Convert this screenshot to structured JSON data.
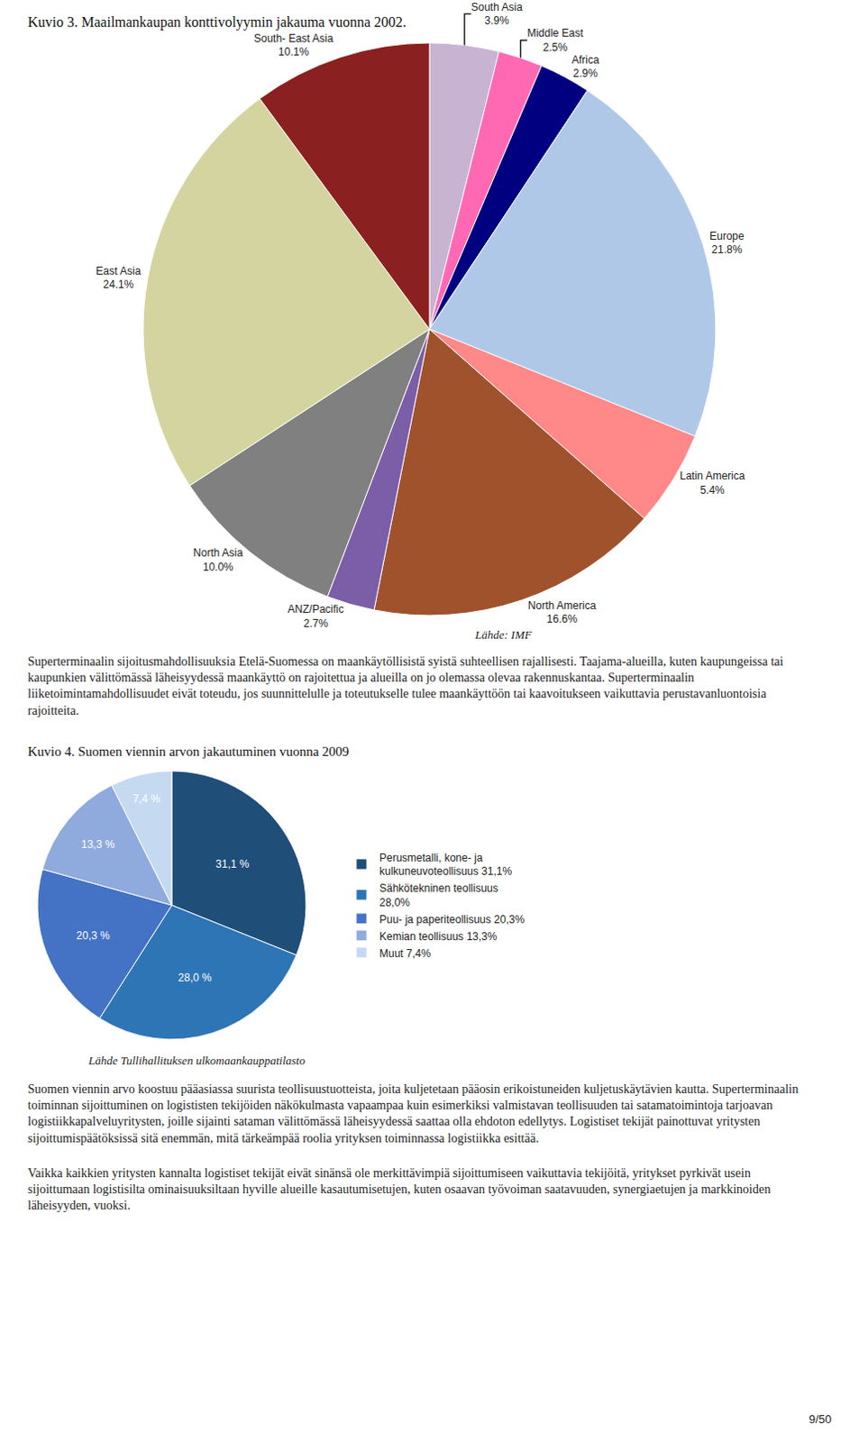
{
  "chart_data": [
    {
      "type": "pie",
      "title": "Kuvio 3. Maailmankaupan konttivolyymin jakauma vuonna 2002.",
      "categories": [
        "South Asia",
        "Middle East",
        "Africa",
        "Europe",
        "Latin America",
        "North America",
        "ANZ/Pacific",
        "North Asia",
        "East Asia",
        "South- East Asia"
      ],
      "values": [
        3.9,
        2.5,
        2.9,
        21.8,
        5.4,
        16.6,
        2.7,
        10.0,
        24.1,
        10.1
      ],
      "value_labels": [
        "3.9%",
        "2.5%",
        "2.9%",
        "21.8%",
        "5.4%",
        "16.6%",
        "2.7%",
        "10.0%",
        "24.1%",
        "10.1%"
      ],
      "colors": [
        "#c8b4d2",
        "#ff69b4",
        "#000080",
        "#b0c8e8",
        "#ff8888",
        "#a0522d",
        "#7b5ea7",
        "#808080",
        "#d4d4a0",
        "#8b2020"
      ],
      "data_labels": true,
      "annotations": [
        "Lähde: IMF",
        "Superterminaalin sijoitusmahdollisuuksia Etelä-Suomessa on maankäytöllisistä syistä suhteellisen rajallisesti. Taajama-alueilla, kuten kaupungeissa tai kaupunkien välittömässä läheisyydessä maankäyttö on rajoitettua ja alueilla on jo olemassa olevaa rakennuskantaa. Superterminaalin liiketoimintamahdollisuudet eivät toteudu, jos suunnittelulle ja toteutukselle tulee maankäyttöön tai kaavoitukseen vaikuttavia perustavanluontoisia rajoitteita."
      ]
    },
    {
      "type": "pie",
      "title": "Kuvio 4. Suomen viennin arvon jakautuminen vuonna 2009",
      "categories": [
        "Perusmetalli, kone- ja\nkulkuneuvoteollisuus 31,1%",
        "Sähkötekninen teollisuus\n28,0%",
        "Puu- ja paperiteollisuus 20,3%",
        "Kemian teollisuus 13,3%",
        "Muut 7,4%"
      ],
      "values": [
        31.1,
        28.0,
        20.3,
        13.3,
        7.4
      ],
      "value_labels": [
        "31,1 %",
        "28,0 %",
        "20,3 %",
        "13,3 %",
        "7,4 %"
      ],
      "colors": [
        "#1f4e79",
        "#2e75b6",
        "#4472c4",
        "#8faadc",
        "#c5d9f1"
      ],
      "data_labels": true,
      "legend": "right",
      "annotations": [
        "Lähde Tullihallituksen ulkomaankauppatilasto",
        "Suomen viennin arvo koostuu pääasiassa suurista teollisuustuotteista, joita kuljetetaan pääosin erikoistuneiden kuljetuskäytävien kautta. Superterminaalin toiminnan sijoittuminen on logististen tekijöiden näkökulmasta vapaampaa kuin esimerkiksi valmistavan teollisuuden tai satamatoimintoja tarjoavan logistiikkapalveluyritysten, joille sijainti sataman välittömässä läheisyydessä saattaa olla ehdoton edellytys. Logistiset tekijät painottuvat yritysten sijoittumispäätöksissä sitä enemmän, mitä tärkeämpää roolia yrityksen toiminnassa logistiikka esittää.",
        "Vaikka kaikkien yritysten kannalta logistiset tekijät eivät sinänsä ole merkittävimpiä sijoittumiseen vaikuttavia tekijöitä, yritykset pyrkivät usein sijoittumaan logistisilta ominaisuuksiltaan hyville alueille kasautumisetujen, kuten osaavan työvoiman saatavuuden, synergiaetujen ja markkinoiden läheisyyden, vuoksi.",
        "9/50"
      ]
    }
  ]
}
